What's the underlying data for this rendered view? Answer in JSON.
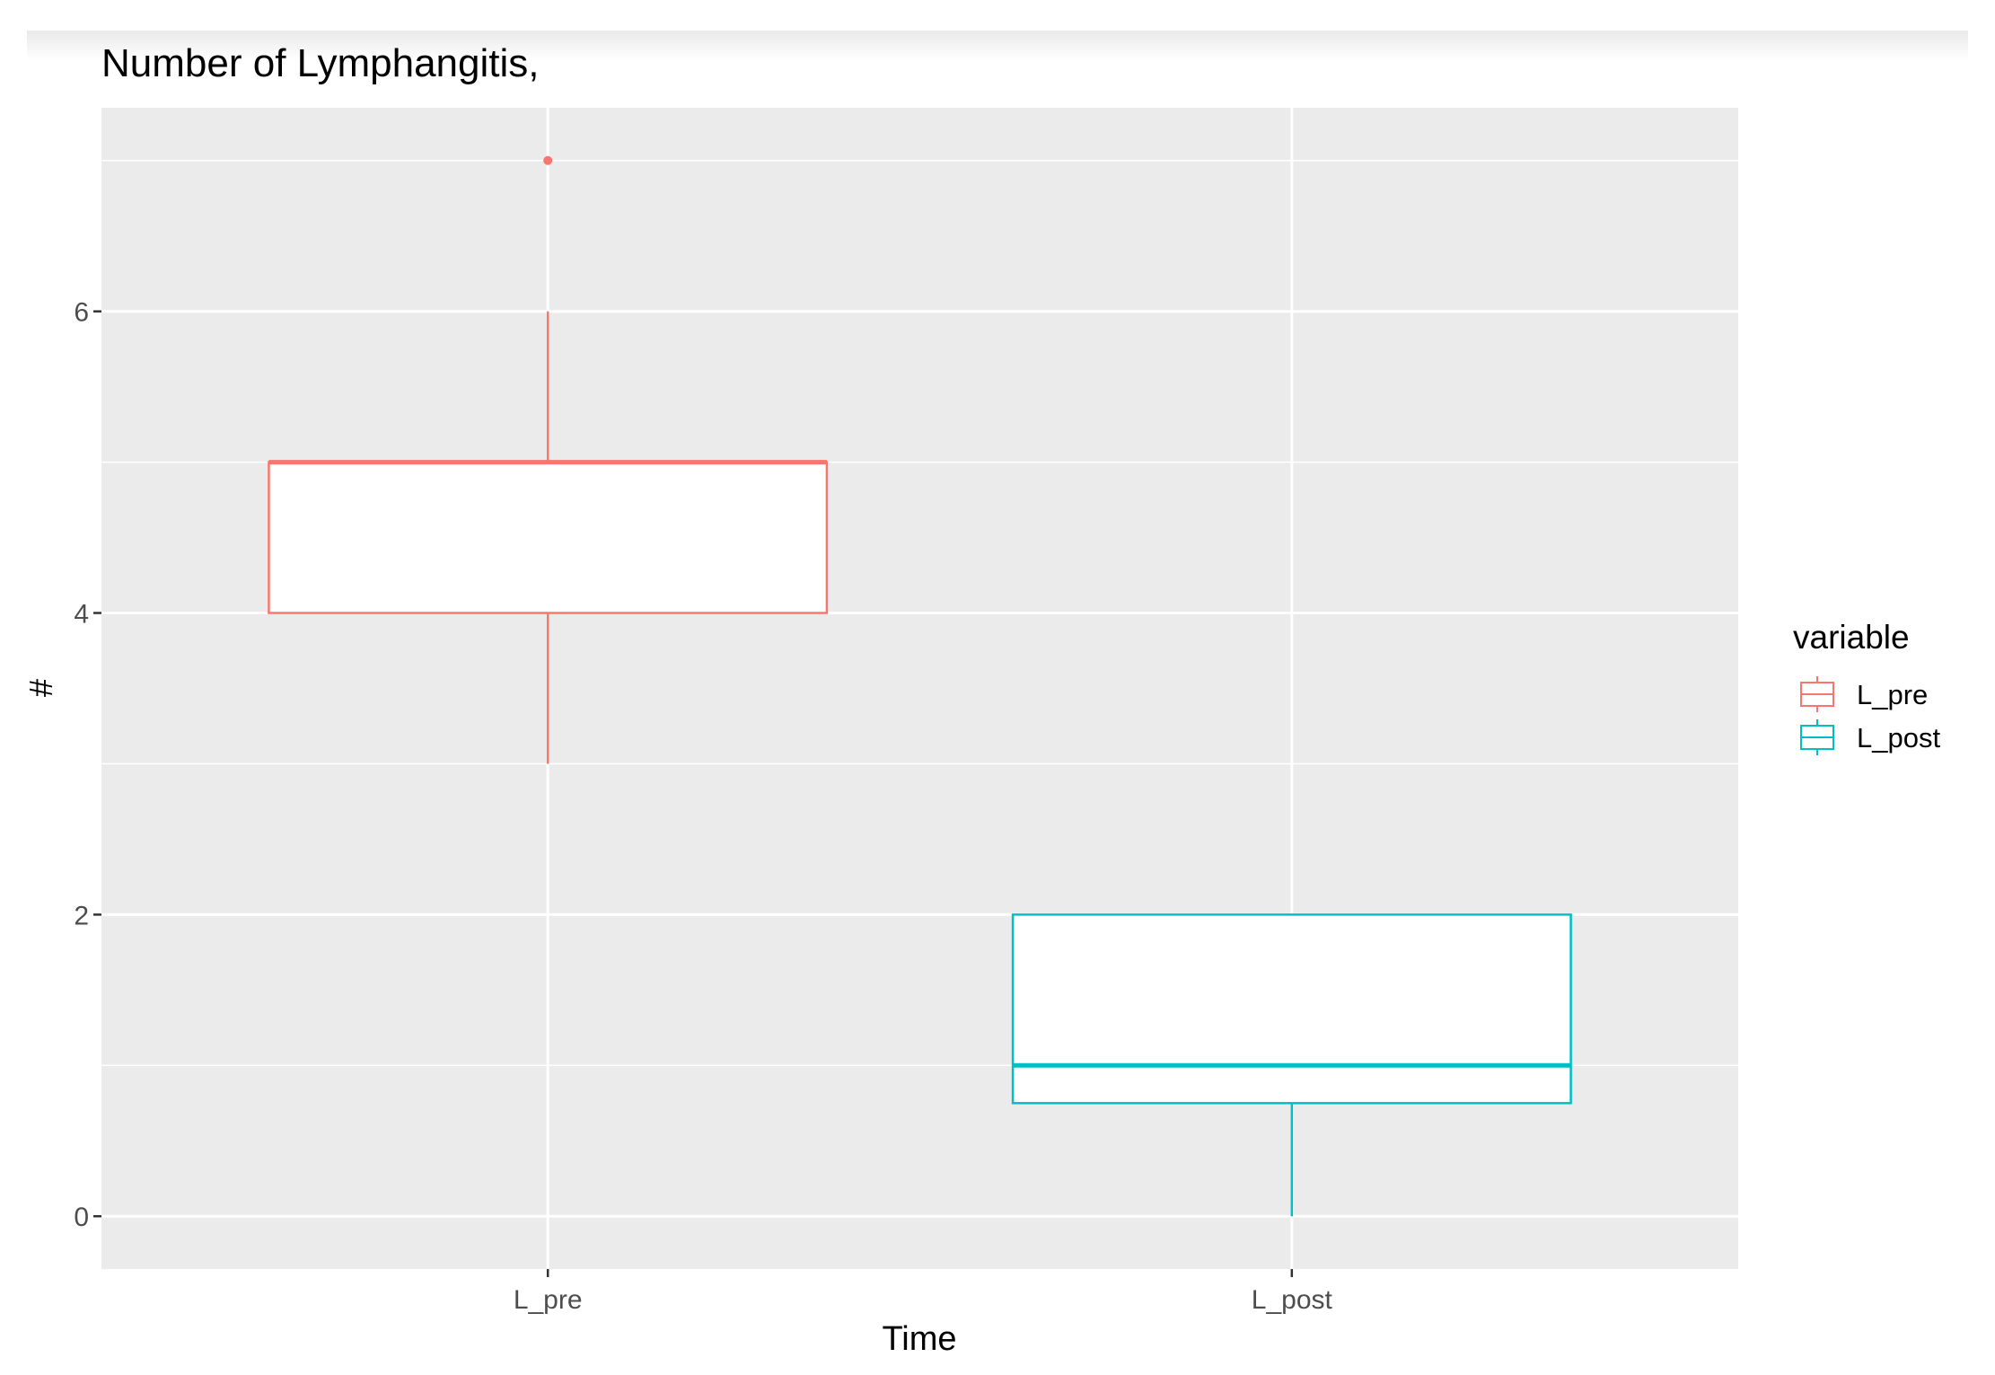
{
  "chart_data": {
    "type": "boxplot",
    "title": "Number of Lymphangitis,",
    "xlabel": "Time",
    "ylabel": "#",
    "categories": [
      "L_pre",
      "L_post"
    ],
    "y_ticks": [
      0,
      2,
      4,
      6
    ],
    "ylim": [
      -0.35,
      7.35
    ],
    "grid": true,
    "legend": {
      "title": "variable",
      "position": "right",
      "entries": [
        "L_pre",
        "L_post"
      ]
    },
    "series": [
      {
        "name": "L_pre",
        "color": "#F8766D",
        "whisker_low": 3,
        "q1": 4,
        "median": 5,
        "q3": 5,
        "whisker_high": 6,
        "outliers": [
          7
        ]
      },
      {
        "name": "L_post",
        "color": "#00BFC4",
        "whisker_low": 0,
        "q1": 0.75,
        "median": 1,
        "q3": 2,
        "whisker_high": 2,
        "outliers": []
      }
    ]
  }
}
